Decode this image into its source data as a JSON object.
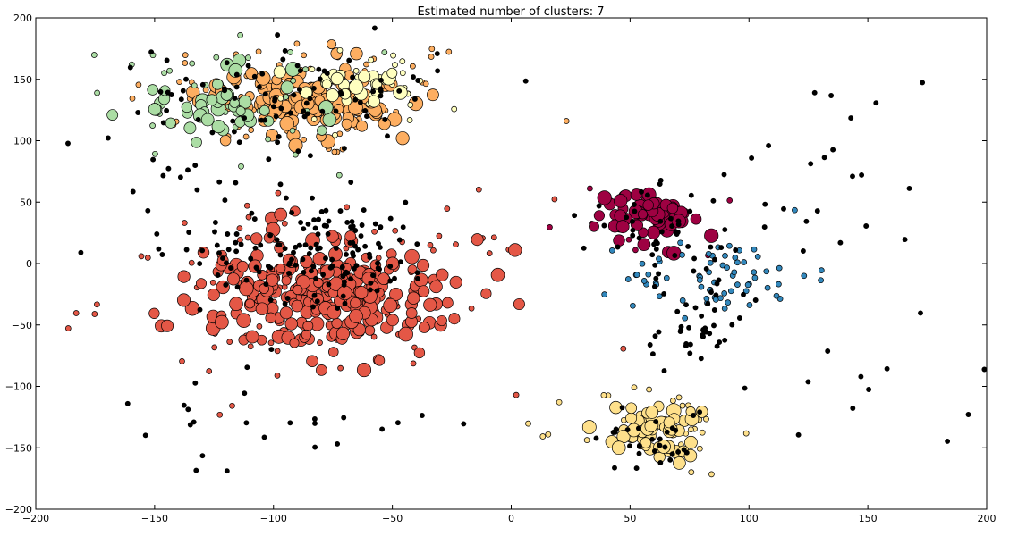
{
  "chart_data": {
    "type": "scatter",
    "title": "Estimated number of clusters: 7",
    "xlabel": "",
    "ylabel": "",
    "xlim": [
      -200,
      200
    ],
    "ylim": [
      -200,
      200
    ],
    "x_ticks": [
      -200,
      -150,
      -100,
      -50,
      0,
      50,
      100,
      150,
      200
    ],
    "y_ticks": [
      -200,
      -150,
      -100,
      -50,
      0,
      50,
      100,
      150,
      200
    ],
    "x_tick_labels": [
      "−200",
      "−150",
      "−100",
      "−50",
      "0",
      "50",
      "100",
      "150",
      "200"
    ],
    "y_tick_labels": [
      "−200",
      "−150",
      "−100",
      "−50",
      "0",
      "50",
      "100",
      "150",
      "200"
    ],
    "grid": false,
    "legend": "none",
    "noise_color": "#000000",
    "clusters": [
      {
        "name": "cluster-1",
        "color": "#fdae61",
        "center": [
          -85,
          135
        ],
        "spread": [
          30,
          20
        ],
        "n_core": 130,
        "n_edge": 70
      },
      {
        "name": "cluster-2",
        "color": "#abdda4",
        "center": [
          -120,
          130
        ],
        "spread": [
          22,
          18
        ],
        "n_core": 45,
        "n_edge": 35
      },
      {
        "name": "cluster-3",
        "color": "#ffffbf",
        "center": [
          -65,
          145
        ],
        "spread": [
          15,
          10
        ],
        "n_core": 25,
        "n_edge": 35
      },
      {
        "name": "cluster-4",
        "color": "#e45746",
        "center": [
          -80,
          -25
        ],
        "spread": [
          35,
          30
        ],
        "n_core": 260,
        "n_edge": 90
      },
      {
        "name": "cluster-5",
        "color": "#9e0142",
        "center": [
          58,
          38
        ],
        "spread": [
          15,
          15
        ],
        "n_core": 60,
        "n_edge": 10
      },
      {
        "name": "cluster-6",
        "color": "#3288bd",
        "center": [
          87,
          -10
        ],
        "spread": [
          15,
          12
        ],
        "n_core": 0,
        "n_edge": 70
      },
      {
        "name": "cluster-7",
        "color": "#fee08b",
        "center": [
          60,
          -135
        ],
        "spread": [
          13,
          15
        ],
        "n_core": 60,
        "n_edge": 40
      }
    ],
    "noise_regions": [
      {
        "center": [
          -80,
          10
        ],
        "spread": [
          25,
          20
        ],
        "count": 140
      },
      {
        "center": [
          -90,
          140
        ],
        "spread": [
          30,
          20
        ],
        "count": 80
      },
      {
        "center": [
          -120,
          70
        ],
        "spread": [
          35,
          25
        ],
        "count": 30
      },
      {
        "center": [
          -110,
          -130
        ],
        "spread": [
          40,
          25
        ],
        "count": 25
      },
      {
        "center": [
          60,
          30
        ],
        "spread": [
          15,
          15
        ],
        "count": 35
      },
      {
        "center": [
          80,
          -20
        ],
        "spread": [
          15,
          20
        ],
        "count": 25
      },
      {
        "center": [
          75,
          -60
        ],
        "spread": [
          10,
          15
        ],
        "count": 25
      },
      {
        "center": [
          60,
          -140
        ],
        "spread": [
          12,
          15
        ],
        "count": 30
      },
      {
        "center": [
          130,
          50
        ],
        "spread": [
          30,
          60
        ],
        "count": 30
      },
      {
        "center": [
          130,
          -100
        ],
        "spread": [
          30,
          40
        ],
        "count": 10
      }
    ]
  }
}
